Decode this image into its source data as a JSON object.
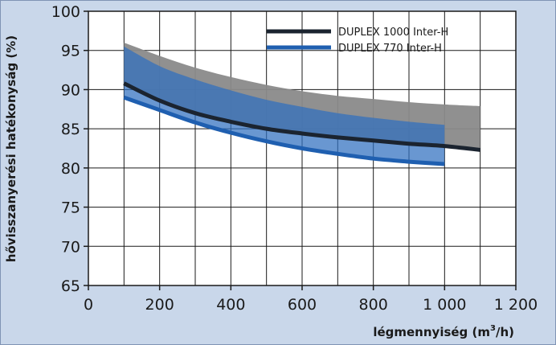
{
  "chart_data": {
    "type": "line",
    "xlabel_main": "légmennyiség (m",
    "xlabel_sup": "3",
    "xlabel_tail": "/h)",
    "ylabel": "hővisszanyerési hatékonyság (%)",
    "xlim": [
      0,
      1200
    ],
    "ylim": [
      65,
      100
    ],
    "x_ticks": [
      0,
      200,
      400,
      600,
      800,
      1000,
      1200
    ],
    "x_tick_labels": [
      "0",
      "200",
      "400",
      "600",
      "800",
      "1 000",
      "1 200"
    ],
    "y_ticks": [
      65,
      70,
      75,
      80,
      85,
      90,
      95,
      100
    ],
    "y_tick_labels": [
      "65",
      "70",
      "75",
      "80",
      "85",
      "90",
      "95",
      "100"
    ],
    "grid": true,
    "legend_position": "top-right",
    "series": [
      {
        "name": "DUPLEX 1000 Inter-H",
        "color": "#1b2430",
        "band_color": "#8a8a8a",
        "x": [
          100,
          200,
          300,
          400,
          500,
          600,
          700,
          800,
          900,
          1000,
          1100
        ],
        "y": [
          90.8,
          88.6,
          87.0,
          85.9,
          85.0,
          84.4,
          83.9,
          83.5,
          83.1,
          82.8,
          82.3
        ],
        "band_upper": [
          96.0,
          94.3,
          92.8,
          91.6,
          90.6,
          89.8,
          89.2,
          88.8,
          88.4,
          88.1,
          87.9
        ],
        "band_lower": [
          90.8,
          88.6,
          87.0,
          85.9,
          85.0,
          84.4,
          83.9,
          83.5,
          83.1,
          82.8,
          82.3
        ]
      },
      {
        "name": "DUPLEX 770 Inter-H",
        "color": "#1f5fb0",
        "band_color": "#2f6fbf",
        "x": [
          100,
          200,
          300,
          400,
          500,
          600,
          700,
          800,
          900,
          1000
        ],
        "y": [
          89.0,
          87.4,
          85.8,
          84.5,
          83.4,
          82.5,
          81.8,
          81.2,
          80.8,
          80.5
        ],
        "band_upper": [
          95.5,
          93.0,
          91.3,
          89.9,
          88.7,
          87.8,
          87.0,
          86.4,
          85.9,
          85.5
        ],
        "band_lower": [
          89.0,
          87.4,
          85.8,
          84.5,
          83.4,
          82.5,
          81.8,
          81.2,
          80.8,
          80.5
        ]
      }
    ]
  }
}
